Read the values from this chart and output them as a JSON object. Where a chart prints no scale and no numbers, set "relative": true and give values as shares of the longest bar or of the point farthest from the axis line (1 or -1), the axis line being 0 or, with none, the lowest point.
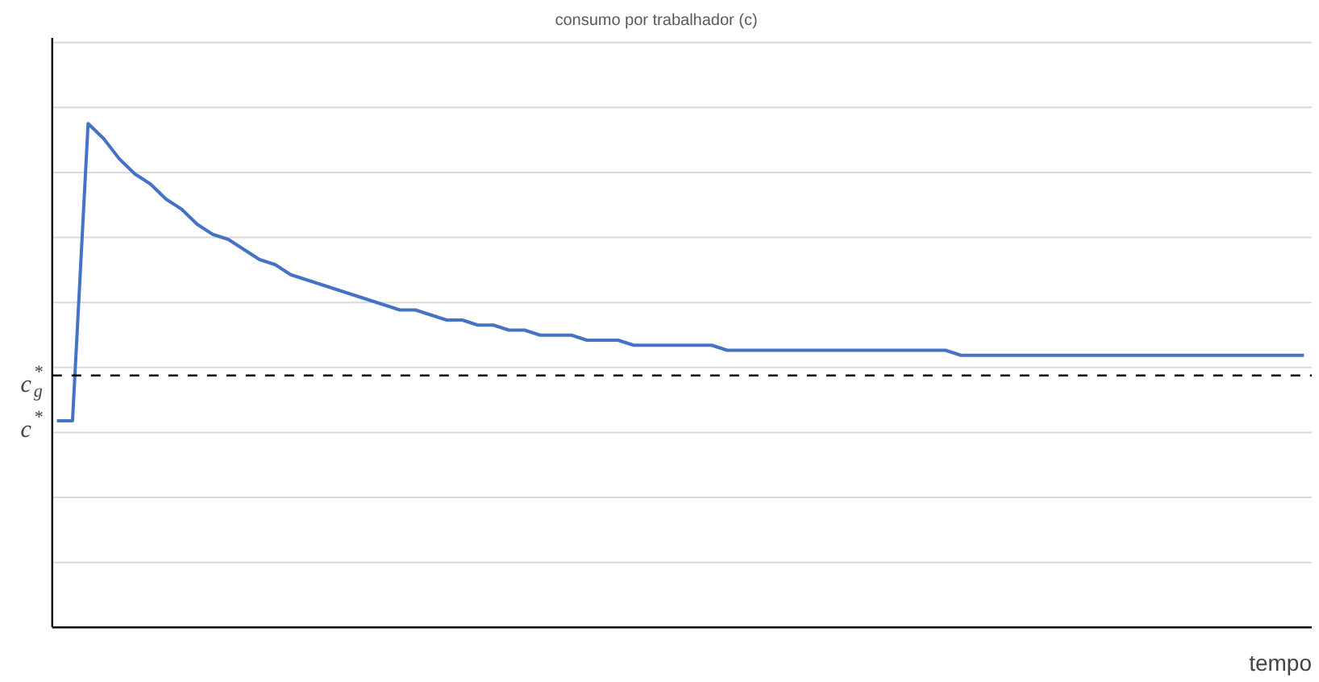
{
  "chart_data": {
    "type": "line",
    "title": "consumo por trabalhador (c)",
    "xlabel": "tempo",
    "relative": true,
    "grid": "y",
    "categories": [
      null,
      null,
      null,
      null,
      null,
      null,
      null,
      null,
      null,
      null,
      null,
      null,
      null,
      null,
      null,
      null,
      null,
      null,
      null,
      null,
      null,
      null,
      null,
      null,
      null,
      null,
      null,
      null,
      null,
      null,
      null,
      null,
      null,
      null,
      null,
      null,
      null,
      null,
      null,
      null,
      null,
      null,
      null,
      null,
      null,
      null,
      null,
      null,
      null,
      null,
      null,
      null,
      null,
      null,
      null,
      null,
      null,
      null,
      null,
      null,
      null,
      null,
      null,
      null,
      null,
      null,
      null,
      null,
      null,
      null,
      null,
      null,
      null,
      null,
      null,
      null,
      null,
      null,
      null,
      null,
      null
    ],
    "series": [
      {
        "color": "#4472c4",
        "values": [
          0.41,
          0.41,
          1.0,
          0.97,
          0.93,
          0.9,
          0.88,
          0.85,
          0.83,
          0.8,
          0.78,
          0.77,
          0.75,
          0.73,
          0.72,
          0.7,
          0.69,
          0.68,
          0.67,
          0.66,
          0.65,
          0.64,
          0.63,
          0.63,
          0.62,
          0.61,
          0.61,
          0.6,
          0.6,
          0.59,
          0.59,
          0.58,
          0.58,
          0.58,
          0.57,
          0.57,
          0.57,
          0.56,
          0.56,
          0.56,
          0.56,
          0.56,
          0.56,
          0.55,
          0.55,
          0.55,
          0.55,
          0.55,
          0.55,
          0.55,
          0.55,
          0.55,
          0.55,
          0.55,
          0.55,
          0.55,
          0.55,
          0.55,
          0.54,
          0.54,
          0.54,
          0.54,
          0.54,
          0.54,
          0.54,
          0.54,
          0.54,
          0.54,
          0.54,
          0.54,
          0.54,
          0.54,
          0.54,
          0.54,
          0.54,
          0.54,
          0.54,
          0.54,
          0.54,
          0.54,
          0.54
        ]
      }
    ],
    "ref_lines": [
      {
        "axis": "y",
        "value": 0.5,
        "label": "c$_{g}$$^{*}$",
        "color": "#000000",
        "line_style": "dashed"
      }
    ],
    "annotations": [
      "c$^{*}$"
    ],
    "marker": "none",
    "line_style": "solid"
  }
}
